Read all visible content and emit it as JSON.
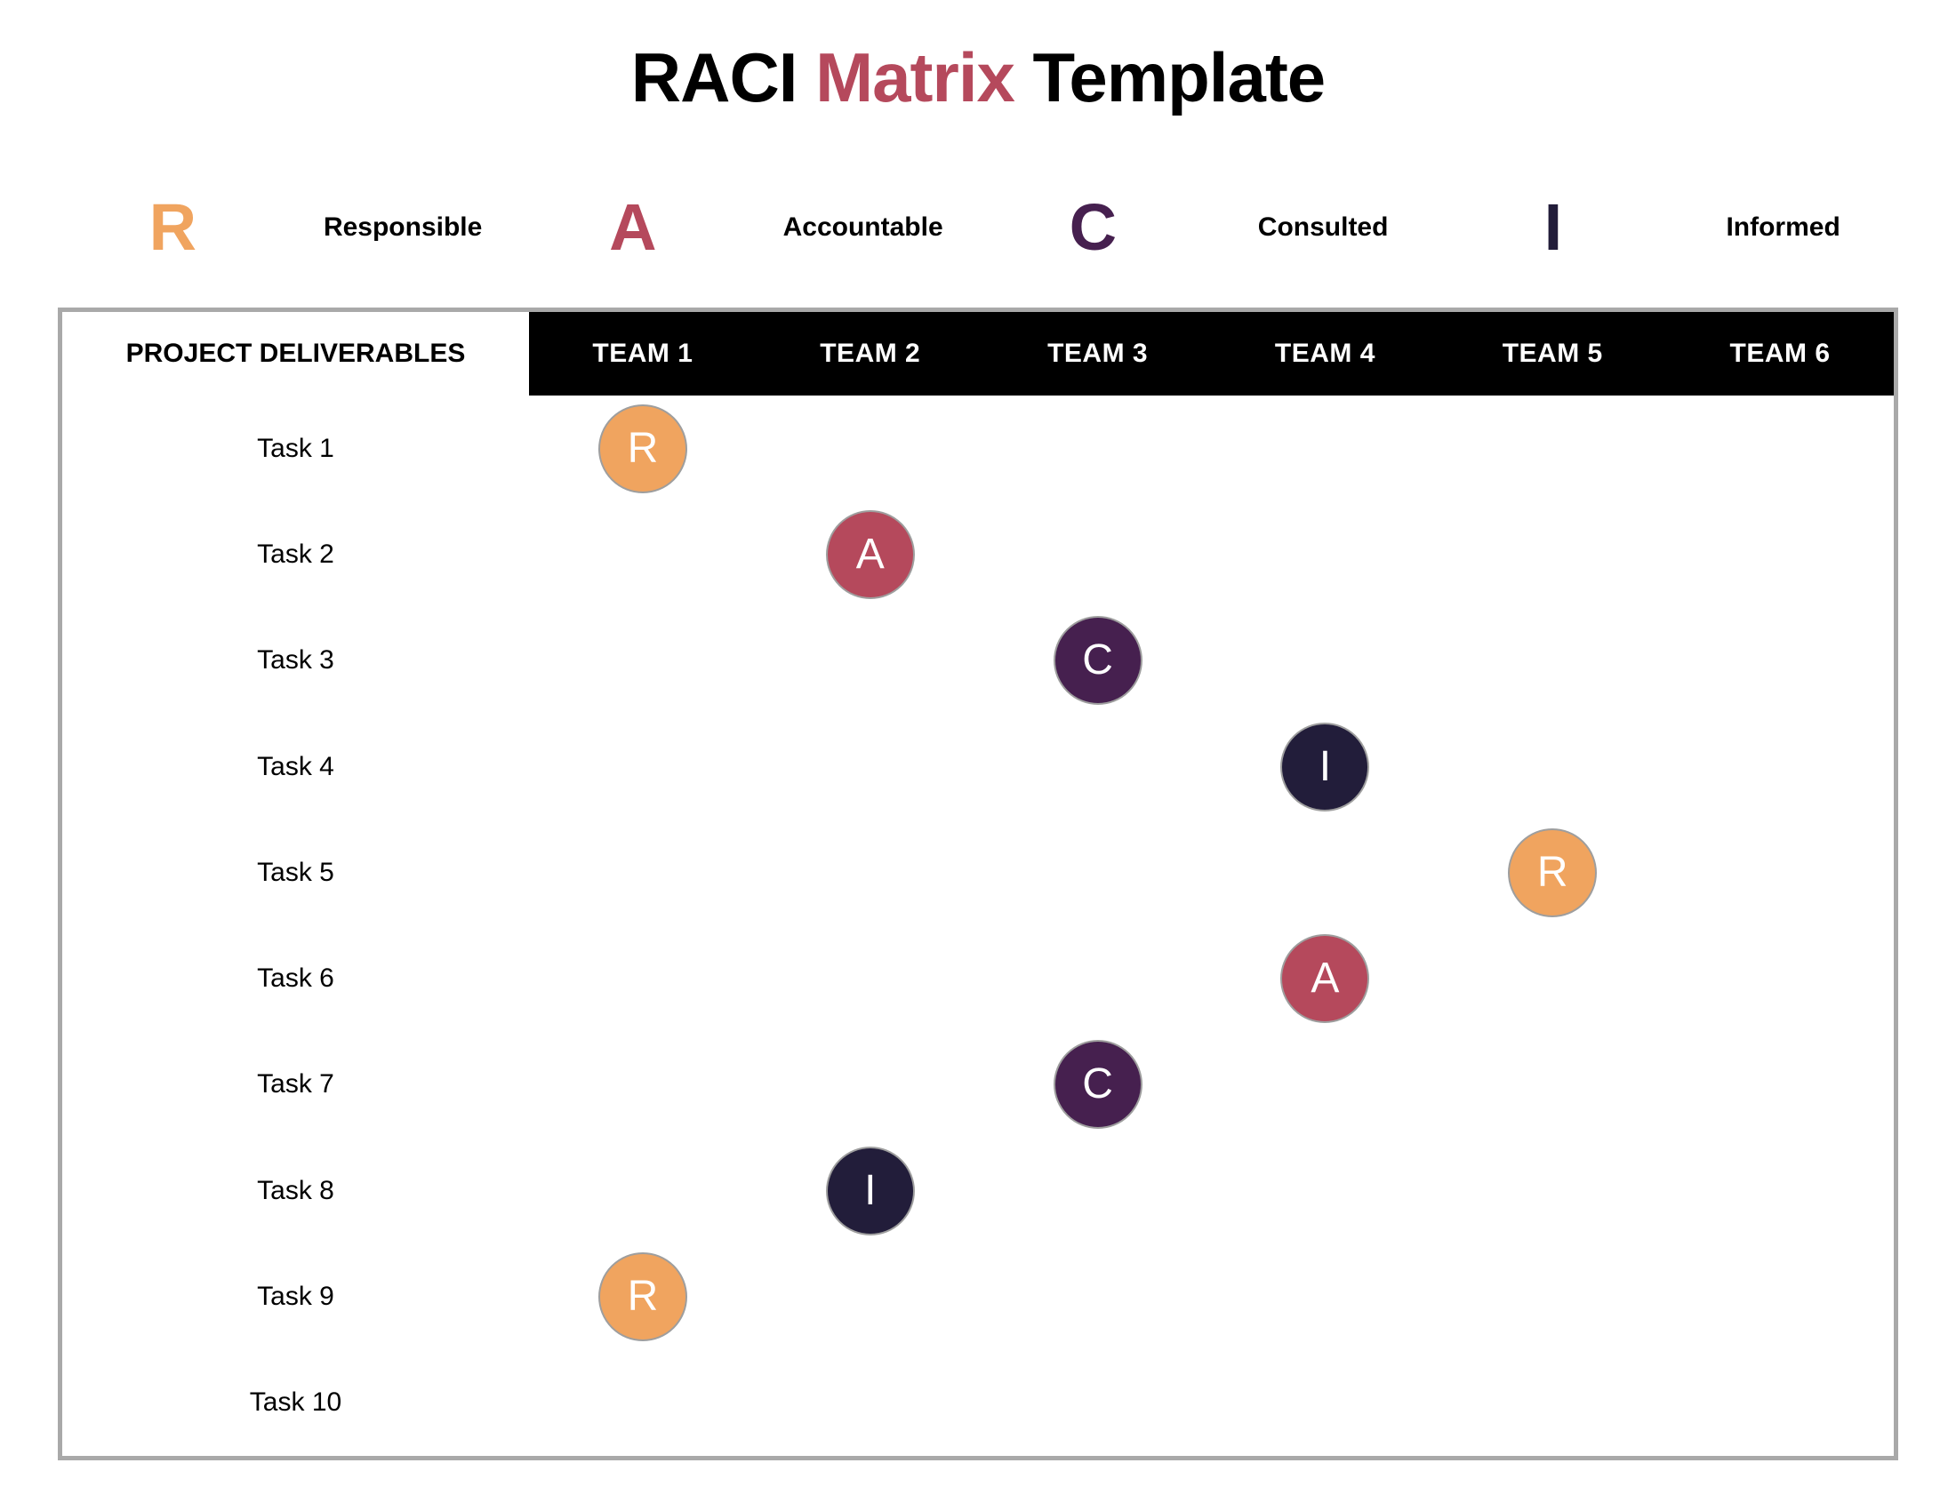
{
  "title": {
    "part1": "RACI ",
    "part2": "Matrix",
    "part3": " Template",
    "accent_color": "#B5495C"
  },
  "legend": {
    "items": [
      {
        "letter": "R",
        "label": "Responsible",
        "color": "#F0A45F"
      },
      {
        "letter": "A",
        "label": "Accountable",
        "color": "#B5495C"
      },
      {
        "letter": "C",
        "label": "Consulted",
        "color": "#46204F"
      },
      {
        "letter": "I",
        "label": "Informed",
        "color": "#221D3A"
      }
    ]
  },
  "table": {
    "deliverables_header": "PROJECT DELIVERABLES",
    "teams": [
      "TEAM 1",
      "TEAM 2",
      "TEAM 3",
      "TEAM 4",
      "TEAM 5",
      "TEAM 6"
    ],
    "header_bg": "#000000",
    "header_text_color": "#FFFFFF",
    "border_color": "#A9A9A9",
    "circle_border_color": "#9E9E9E",
    "role_colors": {
      "R": "#F0A45F",
      "A": "#B5495C",
      "C": "#46204F",
      "I": "#221D3A"
    },
    "rows": [
      {
        "task": "Task 1",
        "cells": [
          "R",
          "",
          "",
          "",
          "",
          ""
        ]
      },
      {
        "task": "Task 2",
        "cells": [
          "",
          "A",
          "",
          "",
          "",
          ""
        ]
      },
      {
        "task": "Task 3",
        "cells": [
          "",
          "",
          "C",
          "",
          "",
          ""
        ]
      },
      {
        "task": "Task 4",
        "cells": [
          "",
          "",
          "",
          "I",
          "",
          ""
        ]
      },
      {
        "task": "Task 5",
        "cells": [
          "",
          "",
          "",
          "",
          "R",
          ""
        ]
      },
      {
        "task": "Task 6",
        "cells": [
          "",
          "",
          "",
          "A",
          "",
          ""
        ]
      },
      {
        "task": "Task 7",
        "cells": [
          "",
          "",
          "C",
          "",
          "",
          ""
        ]
      },
      {
        "task": "Task 8",
        "cells": [
          "",
          "I",
          "",
          "",
          "",
          ""
        ]
      },
      {
        "task": "Task 9",
        "cells": [
          "R",
          "",
          "",
          "",
          "",
          ""
        ]
      },
      {
        "task": "Task 10",
        "cells": [
          "",
          "",
          "",
          "",
          "",
          ""
        ]
      }
    ]
  }
}
